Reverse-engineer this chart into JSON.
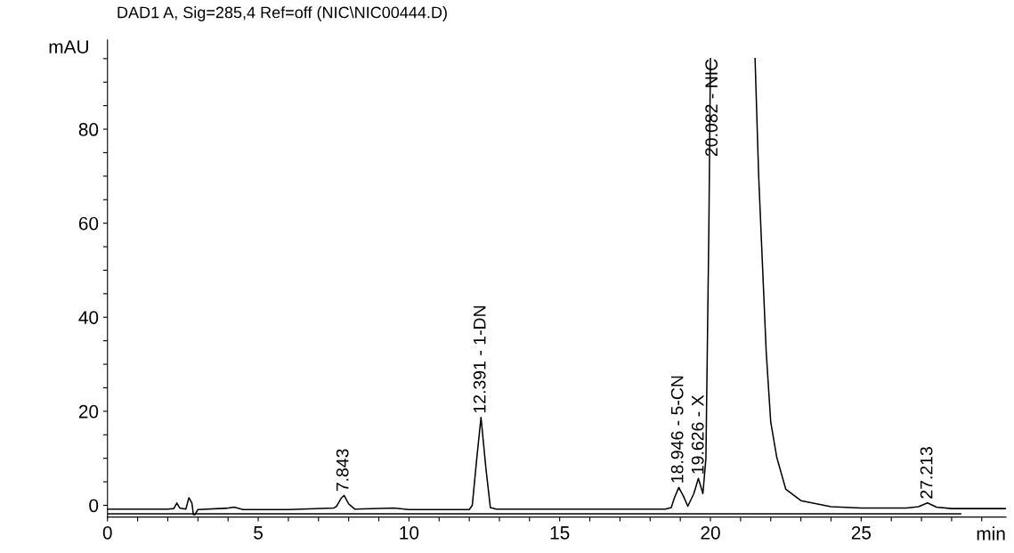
{
  "chart_data": {
    "type": "line",
    "title": "DAD1 A, Sig=285,4 Ref=off (NIC\\NIC00444.D)",
    "xlabel": "min",
    "ylabel": "mAU",
    "xlim": [
      0,
      29.8
    ],
    "ylim": [
      -2.5,
      99
    ],
    "xticks": [
      0,
      {
        "value": 1,
        "label": null
      },
      {
        "value": 2,
        "label": null
      },
      {
        "value": 3,
        "label": null
      },
      {
        "value": 4,
        "label": null
      },
      5,
      {
        "value": 6,
        "label": null
      },
      {
        "value": 7,
        "label": null
      },
      {
        "value": 8,
        "label": null
      },
      {
        "value": 9,
        "label": null
      },
      10,
      {
        "value": 11,
        "label": null
      },
      {
        "value": 12,
        "label": null
      },
      {
        "value": 13,
        "label": null
      },
      {
        "value": 14,
        "label": null
      },
      15,
      {
        "value": 16,
        "label": null
      },
      {
        "value": 17,
        "label": null
      },
      {
        "value": 18,
        "label": null
      },
      {
        "value": 19,
        "label": null
      },
      20,
      {
        "value": 21,
        "label": null
      },
      {
        "value": 22,
        "label": null
      },
      {
        "value": 23,
        "label": null
      },
      {
        "value": 24,
        "label": null
      },
      25,
      {
        "value": 26,
        "label": null
      },
      {
        "value": 27,
        "label": null
      },
      {
        "value": 28,
        "label": null
      },
      {
        "value": 29,
        "label": null
      }
    ],
    "yticks": [
      0,
      {
        "value": 5,
        "label": null
      },
      {
        "value": 10,
        "label": null
      },
      {
        "value": 15,
        "label": null
      },
      20,
      {
        "value": 25,
        "label": null
      },
      {
        "value": 30,
        "label": null
      },
      {
        "value": 35,
        "label": null
      },
      40,
      {
        "value": 45,
        "label": null
      },
      {
        "value": 50,
        "label": null
      },
      {
        "value": 55,
        "label": null
      },
      60,
      {
        "value": 65,
        "label": null
      },
      {
        "value": 70,
        "label": null
      },
      {
        "value": 75,
        "label": null
      },
      80,
      {
        "value": 85,
        "label": null
      },
      {
        "value": 90,
        "label": null
      },
      {
        "value": 95,
        "label": null
      }
    ],
    "grid": false,
    "legend": false,
    "marker": "none",
    "line_style": "solid",
    "series": [
      {
        "color": "#000000",
        "x": [
          0,
          2.0,
          2.2,
          2.3,
          2.4,
          2.6,
          2.7,
          2.8,
          2.85,
          2.9,
          3.0,
          4.0,
          4.2,
          4.5,
          6.0,
          7.5,
          7.6,
          7.75,
          7.85,
          8.0,
          8.2,
          9.5,
          10,
          12.0,
          12.1,
          12.25,
          12.39,
          12.55,
          12.7,
          12.9,
          18.5,
          18.7,
          18.8,
          18.95,
          19.1,
          19.25,
          19.45,
          19.6,
          19.75,
          19.85,
          19.95,
          20.0,
          20.7,
          21.48,
          21.6,
          21.7,
          21.85,
          22.0,
          22.2,
          22.5,
          23.0,
          24.0,
          25.0,
          26.5,
          26.9,
          27.2,
          27.5,
          28,
          29.8
        ],
        "values": [
          -0.8,
          -0.8,
          -0.7,
          0.5,
          -0.6,
          -0.8,
          1.6,
          0.5,
          -2.0,
          -2.0,
          -0.9,
          -0.6,
          -0.4,
          -0.9,
          -0.9,
          -0.6,
          -0.2,
          1.5,
          2.1,
          0.3,
          -0.8,
          -0.6,
          -0.9,
          -0.9,
          0.0,
          10,
          18.7,
          8,
          -0.5,
          -0.8,
          -0.8,
          -0.5,
          1.5,
          3.8,
          2.0,
          -0.2,
          2.5,
          5.7,
          2.5,
          10,
          60,
          95,
          null,
          95,
          70,
          55,
          32.6,
          17.7,
          10.2,
          3.4,
          1.0,
          -0.3,
          -0.6,
          -0.6,
          -0.3,
          0.5,
          -0.4,
          -0.7,
          -0.7
        ]
      },
      {
        "color": "#000000",
        "x": [
          0,
          28.3
        ],
        "values": [
          -1.8,
          -1.8
        ]
      }
    ],
    "annotations": [
      {
        "text": "7.843",
        "x": 7.843,
        "y": 2.1
      },
      {
        "text": "12.391 - 1-DN",
        "x": 12.391,
        "y": 18.7
      },
      {
        "text": "18.946 - 5-CN",
        "x": 18.946,
        "y": 3.8
      },
      {
        "text": "19.626 - X",
        "x": 19.626,
        "y": 5.7
      },
      {
        "text": "20.082 - NIC",
        "x": 20.082,
        "y": 95
      },
      {
        "text": "27.213",
        "x": 27.213,
        "y": 0.5
      }
    ]
  }
}
